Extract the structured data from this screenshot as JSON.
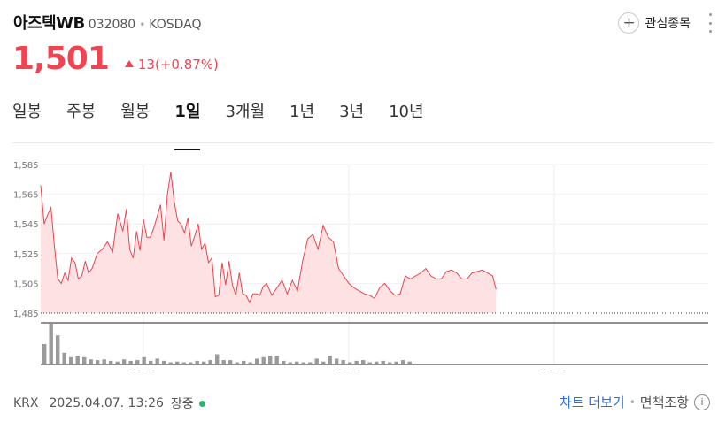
{
  "header": {
    "name": "아즈텍WB",
    "code": "032080",
    "market": "KOSDAQ",
    "watch_label": "관심종목",
    "watch_icon": "plus-circle-icon",
    "menu_icon": "kebab-menu-icon"
  },
  "quote": {
    "price": "1,501",
    "change": "13(+0.87%)",
    "direction": "up",
    "color": "#f04452"
  },
  "tabs": [
    {
      "label": "일봉",
      "active": false
    },
    {
      "label": "주봉",
      "active": false
    },
    {
      "label": "월봉",
      "active": false
    },
    {
      "label": "1일",
      "active": true
    },
    {
      "label": "3개월",
      "active": false
    },
    {
      "label": "1년",
      "active": false
    },
    {
      "label": "3년",
      "active": false
    },
    {
      "label": "10년",
      "active": false
    }
  ],
  "chart_data": {
    "type": "area",
    "y_ticks": [
      "1,585",
      "1,565",
      "1,545",
      "1,525",
      "1,505",
      "1,485"
    ],
    "ylim": [
      1485,
      1585
    ],
    "x_ticks": [
      "10:00",
      "12:00",
      "14:00"
    ],
    "x_range": [
      "09:00",
      "15:30"
    ],
    "series": [
      {
        "x": [
          "09:00",
          "09:02",
          "09:04",
          "09:06",
          "09:08",
          "09:10",
          "09:12",
          "09:14",
          "09:16",
          "09:18",
          "09:20",
          "09:22",
          "09:24",
          "09:26",
          "09:28",
          "09:30",
          "09:33",
          "09:36",
          "09:39",
          "09:42",
          "09:45",
          "09:48",
          "09:50",
          "09:52",
          "09:54",
          "09:56",
          "09:58",
          "10:00",
          "10:02",
          "10:04",
          "10:06",
          "10:08",
          "10:10",
          "10:12",
          "10:14",
          "10:16",
          "10:18",
          "10:20",
          "10:22",
          "10:24",
          "10:26",
          "10:28",
          "10:30",
          "10:32",
          "10:34",
          "10:36",
          "10:38",
          "10:40",
          "10:42",
          "10:44",
          "10:46",
          "10:48",
          "10:50",
          "10:52",
          "10:54",
          "10:56",
          "10:58",
          "11:00",
          "11:02",
          "11:04",
          "11:06",
          "11:08",
          "11:10",
          "11:12",
          "11:15",
          "11:18",
          "11:21",
          "11:24",
          "11:27",
          "11:30",
          "11:33",
          "11:36",
          "11:39",
          "11:42",
          "11:45",
          "11:48",
          "11:51",
          "11:54",
          "11:57",
          "12:00",
          "12:03",
          "12:06",
          "12:09",
          "12:12",
          "12:15",
          "12:18",
          "12:21",
          "12:24",
          "12:27",
          "12:30",
          "12:33",
          "12:36",
          "12:39",
          "12:42",
          "12:45",
          "12:48",
          "12:51",
          "12:54",
          "12:57",
          "13:00",
          "13:03",
          "13:06",
          "13:09",
          "13:12",
          "13:15",
          "13:18",
          "13:21",
          "13:24",
          "13:26"
        ],
        "y": [
          1571,
          1545,
          1551,
          1556,
          1530,
          1508,
          1505,
          1512,
          1507,
          1522,
          1519,
          1508,
          1510,
          1520,
          1512,
          1515,
          1525,
          1528,
          1533,
          1526,
          1552,
          1540,
          1555,
          1528,
          1522,
          1540,
          1527,
          1548,
          1536,
          1536,
          1542,
          1550,
          1558,
          1534,
          1565,
          1580,
          1560,
          1547,
          1545,
          1539,
          1549,
          1530,
          1537,
          1545,
          1528,
          1532,
          1519,
          1522,
          1496,
          1497,
          1519,
          1504,
          1520,
          1504,
          1497,
          1512,
          1498,
          1497,
          1492,
          1498,
          1498,
          1497,
          1503,
          1505,
          1497,
          1502,
          1507,
          1498,
          1507,
          1500,
          1520,
          1535,
          1538,
          1528,
          1544,
          1536,
          1533,
          1515,
          1510,
          1505,
          1502,
          1500,
          1498,
          1497,
          1495,
          1502,
          1505,
          1500,
          1497,
          1498,
          1510,
          1508,
          1510,
          1512,
          1515,
          1510,
          1508,
          1508,
          1513,
          1514,
          1512,
          1508,
          1508,
          1512,
          1513,
          1514,
          1512,
          1510,
          1501
        ]
      }
    ],
    "volume": [
      28,
      56,
      40,
      16,
      10,
      12,
      10,
      7,
      6,
      7,
      5,
      4,
      7,
      5,
      6,
      10,
      5,
      8,
      5,
      3,
      4,
      3,
      3,
      5,
      4,
      6,
      14,
      6,
      6,
      3,
      5,
      3,
      8,
      10,
      12,
      12,
      5,
      3,
      4,
      3,
      3,
      8,
      4,
      12,
      8,
      6,
      3,
      5,
      6,
      3,
      4,
      5,
      3,
      4,
      6,
      4
    ]
  },
  "footer": {
    "exchange": "KRX",
    "datetime": "2025.04.07. 13:26",
    "status": "장중",
    "status_color": "#2ab469",
    "more_chart": "차트 더보기",
    "disclaimer": "면책조항"
  }
}
